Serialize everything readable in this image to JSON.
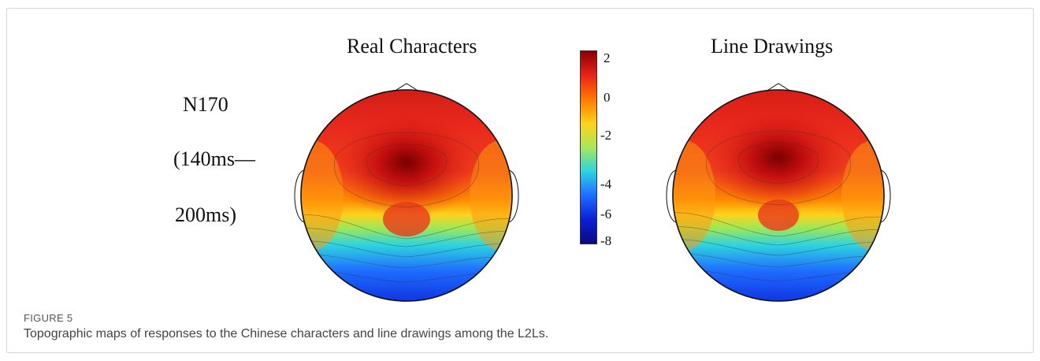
{
  "figure": {
    "label": "FIGURE 5",
    "caption": "Topographic maps of responses to the Chinese characters and line drawings among the L2Ls."
  },
  "panels": {
    "left_title": "Real Characters",
    "right_title": "Line Drawings"
  },
  "row_label": {
    "line1": "N170",
    "line2": "(140ms—",
    "line3": "200ms)"
  },
  "colorbar": {
    "ticks": [
      "2",
      "0",
      "-2",
      "-4",
      "-6",
      "-8"
    ],
    "colors": [
      "#8b0000",
      "#e8221a",
      "#ff7a00",
      "#ffd21a",
      "#a8e85a",
      "#2fd3e0",
      "#1e6cff",
      "#0b1fd6",
      "#0a0a80"
    ]
  }
}
